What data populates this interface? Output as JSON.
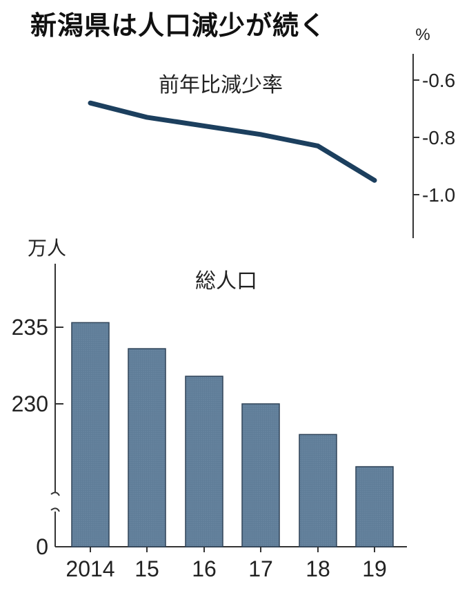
{
  "title": "新潟県は人口減少が続く",
  "chart_data": [
    {
      "type": "line",
      "title": "前年比減少率",
      "unit": "%",
      "x": [
        "2014",
        "15",
        "16",
        "17",
        "18",
        "19"
      ],
      "values": [
        -0.68,
        -0.73,
        -0.76,
        -0.79,
        -0.83,
        -0.95
      ],
      "yticks": [
        "-0.6",
        "-0.8",
        "-1.0"
      ],
      "ylim": [
        -1.15,
        -0.5
      ],
      "color": "#1c3f5e"
    },
    {
      "type": "bar",
      "title": "総人口",
      "unit": "万人",
      "categories": [
        "2014",
        "15",
        "16",
        "17",
        "18",
        "19"
      ],
      "values": [
        235.3,
        233.6,
        231.8,
        230.0,
        228.0,
        225.9
      ],
      "yticks": [
        "235",
        "230",
        "0"
      ],
      "axis_break": true,
      "color": "#5f7d98"
    }
  ]
}
